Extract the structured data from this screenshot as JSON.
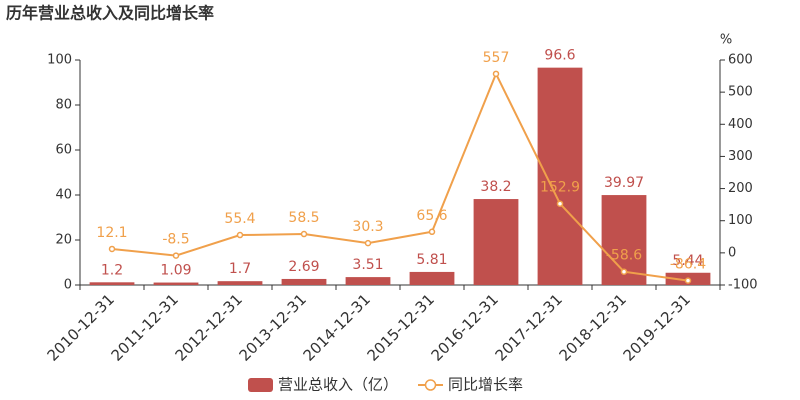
{
  "chart_data": {
    "type": "combo",
    "title": "历年营业总收入及同比增长率",
    "y2_label": "%",
    "categories": [
      "2010-12-31",
      "2011-12-31",
      "2012-12-31",
      "2013-12-31",
      "2014-12-31",
      "2015-12-31",
      "2016-12-31",
      "2017-12-31",
      "2018-12-31",
      "2019-12-31"
    ],
    "series": [
      {
        "name": "营业总收入（亿）",
        "kind": "bar",
        "color": "#c0504d",
        "values": [
          1.2,
          1.09,
          1.7,
          2.69,
          3.51,
          5.81,
          38.2,
          96.6,
          39.97,
          5.44
        ]
      },
      {
        "name": "同比增长率",
        "kind": "line",
        "axis": "y2",
        "color": "#f0a04b",
        "values": [
          12.1,
          -8.5,
          55.4,
          58.5,
          30.3,
          65.6,
          557,
          152.9,
          -58.6,
          -86.4
        ]
      }
    ],
    "ylim": [
      0,
      100
    ],
    "yticks": [
      0,
      20,
      40,
      60,
      80,
      100
    ],
    "y2lim": [
      -100,
      600
    ],
    "y2ticks": [
      -100,
      0,
      100,
      200,
      300,
      400,
      500,
      600
    ],
    "grid": false,
    "legend": "bottom"
  }
}
